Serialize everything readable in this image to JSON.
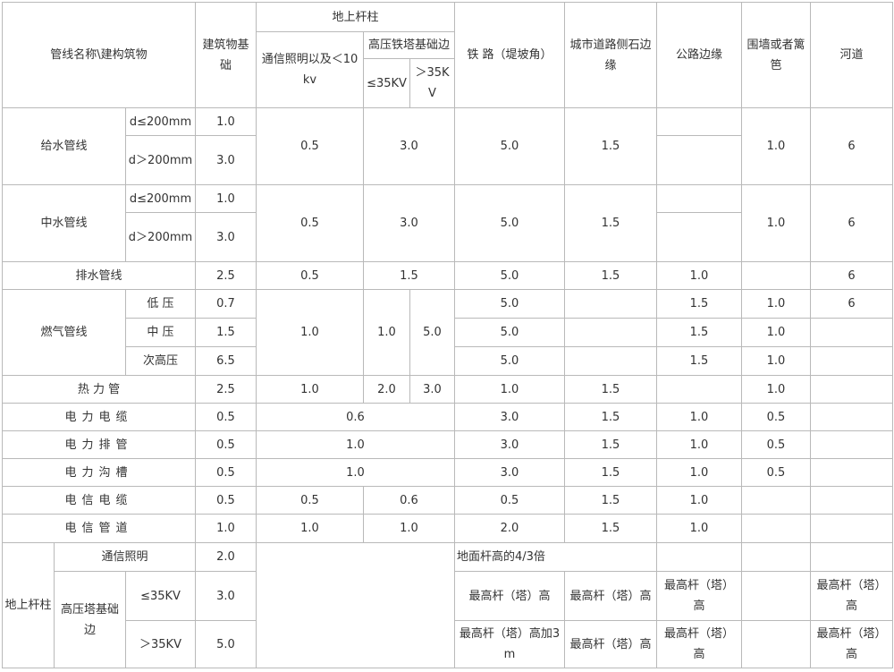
{
  "header": {
    "name": "管线名称\\建构筑物",
    "building": "建筑物基础",
    "pole": "地上杆柱",
    "comm": "通信照明以及＜10kv",
    "hv": "高压铁塔基础边",
    "le35": "≤35KV",
    "gt35": "＞35KV",
    "rail": "铁 路（堤坡角）",
    "curb": "城市道路侧石边缘",
    "hwy": "公路边缘",
    "wall": "围墙或者篱笆",
    "river": "河道"
  },
  "water": {
    "name": "给水管线",
    "sub1": "d≤200mm",
    "sub2": "d＞200mm",
    "b1": "1.0",
    "b2": "3.0",
    "comm": "0.5",
    "hv": "3.0",
    "rail": "5.0",
    "curb": "1.5",
    "hwy1": "",
    "hwy2": "",
    "wall": "1.0",
    "river": "6"
  },
  "reclaim": {
    "name": "中水管线",
    "sub1": "d≤200mm",
    "sub2": "d＞200mm",
    "b1": "1.0",
    "b2": "3.0",
    "comm": "0.5",
    "hv": "3.0",
    "rail": "5.0",
    "curb": "1.5",
    "hwy1": "",
    "hwy2": "",
    "wall": "1.0",
    "river": "6"
  },
  "drain": {
    "name": "排水管线",
    "b": "2.5",
    "comm": "0.5",
    "hv": "1.5",
    "rail": "5.0",
    "curb": "1.5",
    "hwy": "1.0",
    "wall": "",
    "river": "6"
  },
  "gas": {
    "name": "燃气管线",
    "comm": "1.0",
    "hv1": "1.0",
    "hv2": "5.0",
    "rows": [
      {
        "sub": "低 压",
        "b": "0.7",
        "rail": "5.0",
        "curb": "",
        "hwy": "1.5",
        "wall": "1.0",
        "river": "6"
      },
      {
        "sub": "中 压",
        "b": "1.5",
        "rail": "5.0",
        "curb": "",
        "hwy": "1.5",
        "wall": "1.0",
        "river": ""
      },
      {
        "sub": "次高压",
        "b": "6.5",
        "rail": "5.0",
        "curb": "",
        "hwy": "1.5",
        "wall": "1.0",
        "river": ""
      }
    ]
  },
  "heat": {
    "name": "热 力 管",
    "b": "2.5",
    "comm": "1.0",
    "hv1": "2.0",
    "hv2": "3.0",
    "rail": "1.0",
    "curb": "1.5",
    "hwy": "",
    "wall": "1.0",
    "river": ""
  },
  "elec_cable": {
    "name": "电力电缆",
    "b": "0.5",
    "pole": "0.6",
    "rail": "3.0",
    "curb": "1.5",
    "hwy": "1.0",
    "wall": "0.5",
    "river": ""
  },
  "elec_duct": {
    "name": "电力排管",
    "b": "0.5",
    "pole": "1.0",
    "rail": "3.0",
    "curb": "1.5",
    "hwy": "1.0",
    "wall": "0.5",
    "river": ""
  },
  "elec_trench": {
    "name": "电力沟槽",
    "b": "0.5",
    "pole": "1.0",
    "rail": "3.0",
    "curb": "1.5",
    "hwy": "1.0",
    "wall": "0.5",
    "river": ""
  },
  "tel_cable": {
    "name": "电信电缆",
    "b": "0.5",
    "comm": "0.5",
    "hv": "0.6",
    "rail": "0.5",
    "curb": "1.5",
    "hwy": "1.0",
    "wall": "",
    "river": ""
  },
  "tel_duct": {
    "name": "电信管道",
    "b": "1.0",
    "comm": "1.0",
    "hv": "1.0",
    "rail": "2.0",
    "curb": "1.5",
    "hwy": "1.0",
    "wall": "",
    "river": ""
  },
  "pole_sec": {
    "name": "地上杆柱",
    "comm_label": "通信照明",
    "comm_b": "2.0",
    "comm_rail": "地面杆高的4/3倍",
    "hv_label": "高压塔基础边",
    "le35": "≤35KV",
    "le35_b": "3.0",
    "le35_rail": "最高杆（塔）高",
    "le35_curb": "最高杆（塔）高",
    "le35_hwy": "最高杆（塔）高",
    "le35_river": "最高杆（塔）高",
    "gt35": "＞35KV",
    "gt35_b": "5.0",
    "gt35_rail": "最高杆（塔）高加3m",
    "gt35_curb": "最高杆（塔）高",
    "gt35_hwy": "最高杆（塔）高",
    "gt35_river": "最高杆（塔）高"
  }
}
